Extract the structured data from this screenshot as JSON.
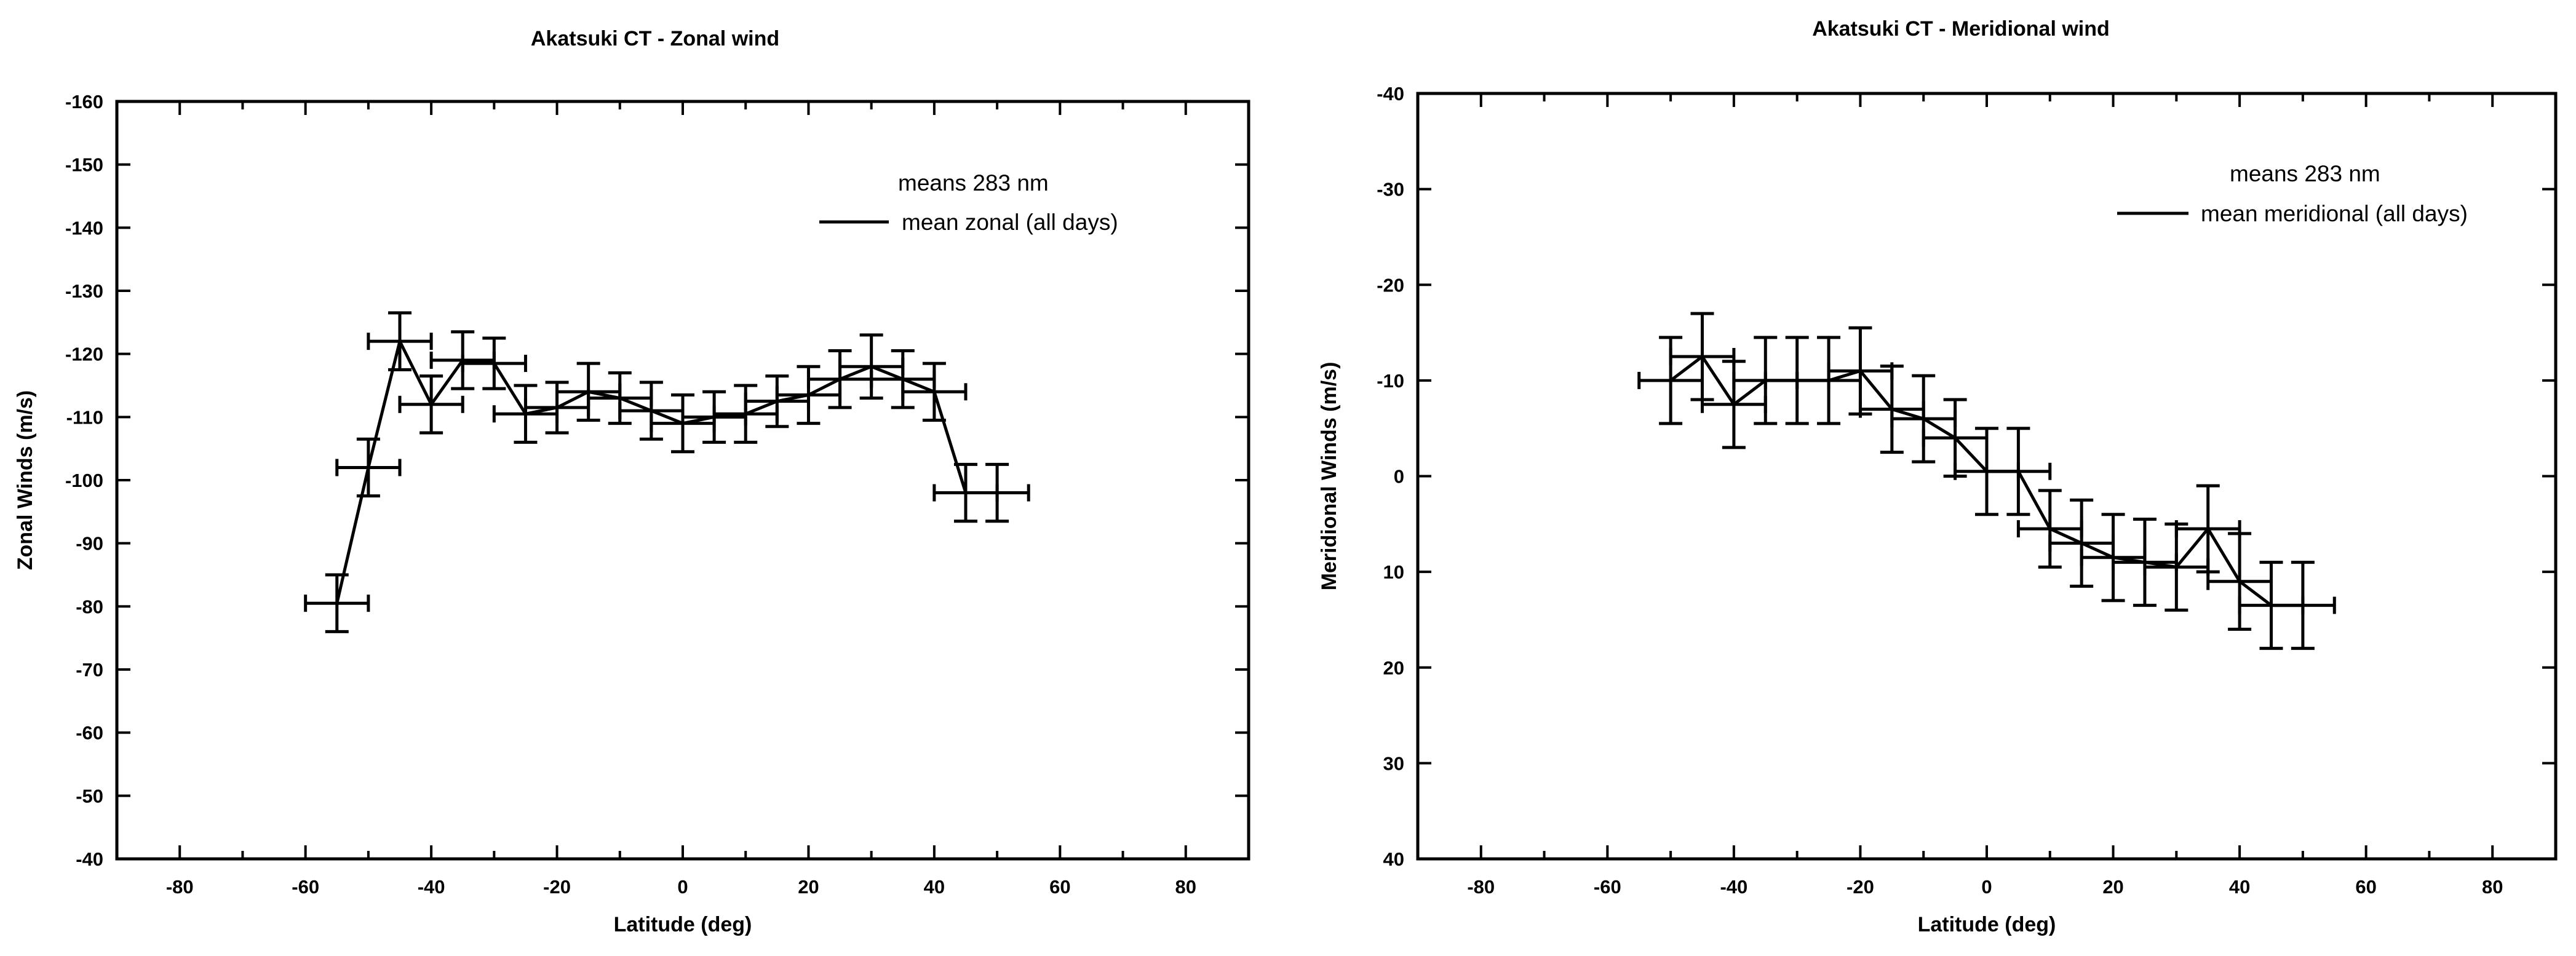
{
  "chart_data": [
    {
      "type": "line",
      "title": "Akatsuki CT - Zonal wind",
      "xlabel": "Latitude (deg)",
      "ylabel": "Zonal Winds (m/s)",
      "xlim": [
        -90,
        90
      ],
      "ylim": [
        -40,
        -160
      ],
      "y_inverted": true,
      "x_ticks": [
        -80,
        -60,
        -40,
        -20,
        0,
        20,
        40,
        60,
        80
      ],
      "x_tick_labels": [
        "-80",
        "-60",
        "-40",
        "-20",
        "0",
        "20",
        "40",
        "60",
        "80"
      ],
      "y_ticks": [
        -160,
        -150,
        -140,
        -130,
        -120,
        -110,
        -100,
        -90,
        -80,
        -70,
        -60,
        -50,
        -40
      ],
      "y_tick_labels": [
        "-160",
        "-150",
        "-140",
        "-130",
        "-120",
        "-110",
        "-100",
        "-90",
        "-80",
        "-70",
        "-60",
        "-50",
        "-40"
      ],
      "grid": false,
      "legend": {
        "title": "means 283 nm",
        "position": "top-right"
      },
      "series": [
        {
          "name": "mean zonal (all days)",
          "color": "#000000",
          "points": [
            {
              "x": -55,
              "y": -80.5,
              "xerr": 5,
              "yerr": 4.5
            },
            {
              "x": -50,
              "y": -102,
              "xerr": 5,
              "yerr": 4.5
            },
            {
              "x": -45,
              "y": -122,
              "xerr": 5,
              "yerr": 4.5
            },
            {
              "x": -40,
              "y": -112,
              "xerr": 5,
              "yerr": 4.5
            },
            {
              "x": -35,
              "y": -119,
              "xerr": 5,
              "yerr": 4.5
            },
            {
              "x": -30,
              "y": -118.5,
              "xerr": 5,
              "yerr": 4
            },
            {
              "x": -25,
              "y": -110.5,
              "xerr": 5,
              "yerr": 4.5
            },
            {
              "x": -20,
              "y": -111.5,
              "xerr": 5,
              "yerr": 4
            },
            {
              "x": -15,
              "y": -114,
              "xerr": 5,
              "yerr": 4.5
            },
            {
              "x": -10,
              "y": -113,
              "xerr": 5,
              "yerr": 4
            },
            {
              "x": -5,
              "y": -111,
              "xerr": 5,
              "yerr": 4.5
            },
            {
              "x": 0,
              "y": -109,
              "xerr": 5,
              "yerr": 4.5
            },
            {
              "x": 5,
              "y": -110,
              "xerr": 5,
              "yerr": 4
            },
            {
              "x": 10,
              "y": -110.5,
              "xerr": 5,
              "yerr": 4.5
            },
            {
              "x": 15,
              "y": -112.5,
              "xerr": 5,
              "yerr": 4
            },
            {
              "x": 20,
              "y": -113.5,
              "xerr": 5,
              "yerr": 4.5
            },
            {
              "x": 25,
              "y": -116,
              "xerr": 5,
              "yerr": 4.5
            },
            {
              "x": 30,
              "y": -118,
              "xerr": 5,
              "yerr": 5
            },
            {
              "x": 35,
              "y": -116,
              "xerr": 5,
              "yerr": 4.5
            },
            {
              "x": 40,
              "y": -114,
              "xerr": 5,
              "yerr": 4.5
            },
            {
              "x": 45,
              "y": -98,
              "xerr": 5,
              "yerr": 4.5
            },
            {
              "x": 50,
              "y": -98,
              "xerr": 5,
              "yerr": 4.5
            }
          ]
        }
      ]
    },
    {
      "type": "line",
      "title": "Akatsuki CT - Meridional wind",
      "xlabel": "Latitude (deg)",
      "ylabel": "Meridional Winds (m/s)",
      "xlim": [
        -90,
        90
      ],
      "ylim": [
        40,
        -40
      ],
      "y_inverted": true,
      "x_ticks": [
        -80,
        -60,
        -40,
        -20,
        0,
        20,
        40,
        60,
        80
      ],
      "x_tick_labels": [
        "-80",
        "-60",
        "-40",
        "-20",
        "0",
        "20",
        "40",
        "60",
        "80"
      ],
      "y_ticks": [
        -40,
        -30,
        -20,
        -10,
        0,
        10,
        20,
        30,
        40
      ],
      "y_tick_labels": [
        "-40",
        "-30",
        "-20",
        "-10",
        "0",
        "10",
        "20",
        "30",
        "40"
      ],
      "grid": false,
      "legend": {
        "title": "means 283 nm",
        "position": "top-right"
      },
      "series": [
        {
          "name": "mean meridional (all days)",
          "color": "#000000",
          "points": [
            {
              "x": -50,
              "y": -10,
              "xerr": 5,
              "yerr": 4.5
            },
            {
              "x": -45,
              "y": -12.5,
              "xerr": 5,
              "yerr": 4.5
            },
            {
              "x": -40,
              "y": -7.5,
              "xerr": 5,
              "yerr": 4.5
            },
            {
              "x": -35,
              "y": -10,
              "xerr": 5,
              "yerr": 4.5
            },
            {
              "x": -30,
              "y": -10,
              "xerr": 5,
              "yerr": 4.5
            },
            {
              "x": -25,
              "y": -10,
              "xerr": 5,
              "yerr": 4.5
            },
            {
              "x": -20,
              "y": -11,
              "xerr": 5,
              "yerr": 4.5
            },
            {
              "x": -15,
              "y": -7,
              "xerr": 5,
              "yerr": 4.5
            },
            {
              "x": -10,
              "y": -6,
              "xerr": 5,
              "yerr": 4.5
            },
            {
              "x": -5,
              "y": -4,
              "xerr": 5,
              "yerr": 4
            },
            {
              "x": 0,
              "y": -0.5,
              "xerr": 5,
              "yerr": 4.5
            },
            {
              "x": 5,
              "y": -0.5,
              "xerr": 5,
              "yerr": 4.5
            },
            {
              "x": 10,
              "y": 5.5,
              "xerr": 5,
              "yerr": 4
            },
            {
              "x": 15,
              "y": 7,
              "xerr": 5,
              "yerr": 4.5
            },
            {
              "x": 20,
              "y": 8.5,
              "xerr": 5,
              "yerr": 4.5
            },
            {
              "x": 25,
              "y": 9,
              "xerr": 5,
              "yerr": 4.5
            },
            {
              "x": 30,
              "y": 9.5,
              "xerr": 5,
              "yerr": 4.5
            },
            {
              "x": 35,
              "y": 5.5,
              "xerr": 5,
              "yerr": 4.5
            },
            {
              "x": 40,
              "y": 11,
              "xerr": 5,
              "yerr": 5
            },
            {
              "x": 45,
              "y": 13.5,
              "xerr": 5,
              "yerr": 4.5
            },
            {
              "x": 50,
              "y": 13.5,
              "xerr": 5,
              "yerr": 4.5
            }
          ]
        }
      ]
    }
  ]
}
